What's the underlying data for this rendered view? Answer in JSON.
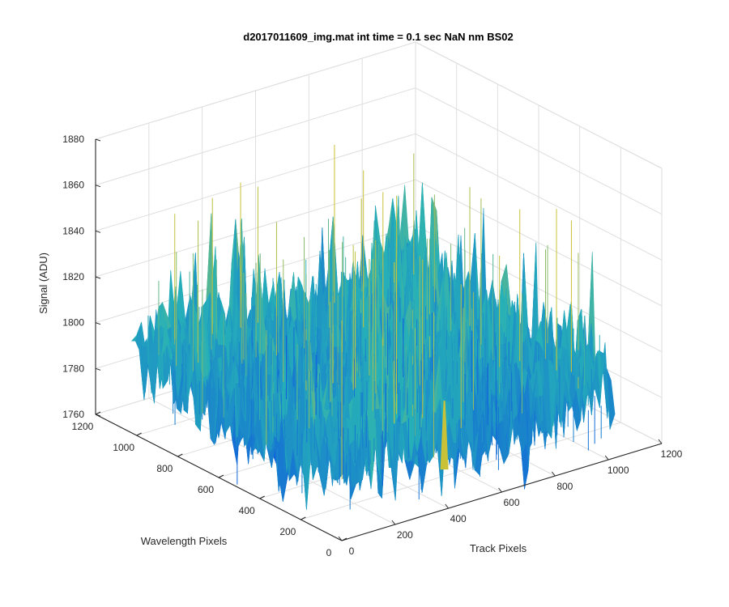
{
  "chart_data": {
    "type": "surface",
    "title": "d2017011609_img.mat int time = 0.1 sec  NaN nm BS02",
    "xlabel": "Track Pixels",
    "ylabel": "Wavelength Pixels",
    "zlabel": "Signal (ADU)",
    "xlim": [
      0,
      1200
    ],
    "ylim": [
      0,
      1200
    ],
    "zlim": [
      1760,
      1880
    ],
    "xticks": [
      "0",
      "200",
      "400",
      "600",
      "800",
      "1000",
      "1200"
    ],
    "yticks": [
      "0",
      "200",
      "400",
      "600",
      "800",
      "1000",
      "1200"
    ],
    "zticks": [
      "1760",
      "1780",
      "1800",
      "1820",
      "1840",
      "1860",
      "1880"
    ],
    "grid": true,
    "colormap": "parula",
    "colors": {
      "low": "#0f5cdd",
      "mid": "#26b0b8",
      "high": "#c9c238"
    },
    "surface": {
      "x_extent": [
        0,
        1024
      ],
      "y_extent": [
        0,
        1024
      ],
      "z_baseline": 1790,
      "z_noise_range": [
        1765,
        1845
      ],
      "z_max_spike": 1861,
      "spike": {
        "x": 400,
        "y": 20,
        "z": 1806
      }
    }
  }
}
